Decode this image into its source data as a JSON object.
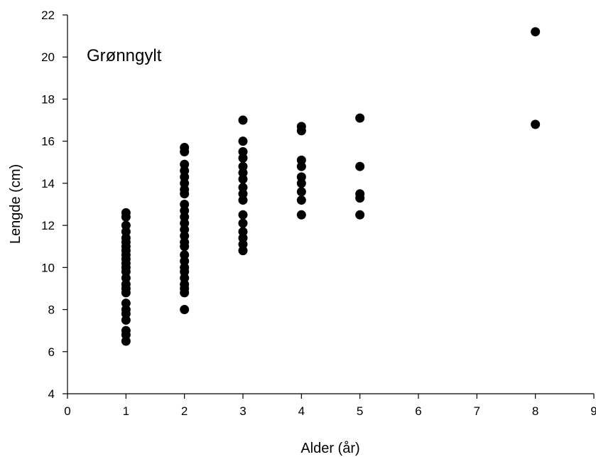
{
  "chart_data": {
    "type": "scatter",
    "annotation": "Grønngylt",
    "xlabel": "Alder (år)",
    "ylabel": "Lengde (cm)",
    "xlim": [
      0,
      9
    ],
    "ylim": [
      4,
      22
    ],
    "xticks": [
      0,
      1,
      2,
      3,
      4,
      5,
      6,
      7,
      8,
      9
    ],
    "yticks": [
      4,
      6,
      8,
      10,
      12,
      14,
      16,
      18,
      20,
      22
    ],
    "grid": false,
    "marker_color": "#000000",
    "points": [
      {
        "x": 1,
        "y": 12.6
      },
      {
        "x": 1,
        "y": 12.4
      },
      {
        "x": 1,
        "y": 12.0
      },
      {
        "x": 1,
        "y": 11.7
      },
      {
        "x": 1,
        "y": 11.4
      },
      {
        "x": 1,
        "y": 11.2
      },
      {
        "x": 1,
        "y": 11.0
      },
      {
        "x": 1,
        "y": 10.8
      },
      {
        "x": 1,
        "y": 10.6
      },
      {
        "x": 1,
        "y": 10.4
      },
      {
        "x": 1,
        "y": 10.2
      },
      {
        "x": 1,
        "y": 10.0
      },
      {
        "x": 1,
        "y": 9.8
      },
      {
        "x": 1,
        "y": 9.5
      },
      {
        "x": 1,
        "y": 9.2
      },
      {
        "x": 1,
        "y": 9.0
      },
      {
        "x": 1,
        "y": 8.8
      },
      {
        "x": 1,
        "y": 8.3
      },
      {
        "x": 1,
        "y": 8.0
      },
      {
        "x": 1,
        "y": 7.8
      },
      {
        "x": 1,
        "y": 7.5
      },
      {
        "x": 1,
        "y": 7.0
      },
      {
        "x": 1,
        "y": 6.8
      },
      {
        "x": 1,
        "y": 6.5
      },
      {
        "x": 2,
        "y": 15.7
      },
      {
        "x": 2,
        "y": 15.5
      },
      {
        "x": 2,
        "y": 14.9
      },
      {
        "x": 2,
        "y": 14.6
      },
      {
        "x": 2,
        "y": 14.3
      },
      {
        "x": 2,
        "y": 14.0
      },
      {
        "x": 2,
        "y": 13.7
      },
      {
        "x": 2,
        "y": 13.5
      },
      {
        "x": 2,
        "y": 13.0
      },
      {
        "x": 2,
        "y": 12.7
      },
      {
        "x": 2,
        "y": 12.4
      },
      {
        "x": 2,
        "y": 12.1
      },
      {
        "x": 2,
        "y": 11.8
      },
      {
        "x": 2,
        "y": 11.5
      },
      {
        "x": 2,
        "y": 11.2
      },
      {
        "x": 2,
        "y": 11.0
      },
      {
        "x": 2,
        "y": 10.6
      },
      {
        "x": 2,
        "y": 10.3
      },
      {
        "x": 2,
        "y": 10.0
      },
      {
        "x": 2,
        "y": 9.8
      },
      {
        "x": 2,
        "y": 9.5
      },
      {
        "x": 2,
        "y": 9.2
      },
      {
        "x": 2,
        "y": 9.0
      },
      {
        "x": 2,
        "y": 8.8
      },
      {
        "x": 2,
        "y": 8.0
      },
      {
        "x": 3,
        "y": 17.0
      },
      {
        "x": 3,
        "y": 16.0
      },
      {
        "x": 3,
        "y": 15.5
      },
      {
        "x": 3,
        "y": 15.2
      },
      {
        "x": 3,
        "y": 14.8
      },
      {
        "x": 3,
        "y": 14.5
      },
      {
        "x": 3,
        "y": 14.2
      },
      {
        "x": 3,
        "y": 13.8
      },
      {
        "x": 3,
        "y": 13.5
      },
      {
        "x": 3,
        "y": 13.2
      },
      {
        "x": 3,
        "y": 12.5
      },
      {
        "x": 3,
        "y": 12.1
      },
      {
        "x": 3,
        "y": 11.7
      },
      {
        "x": 3,
        "y": 11.4
      },
      {
        "x": 3,
        "y": 11.1
      },
      {
        "x": 3,
        "y": 10.8
      },
      {
        "x": 4,
        "y": 16.7
      },
      {
        "x": 4,
        "y": 16.5
      },
      {
        "x": 4,
        "y": 15.1
      },
      {
        "x": 4,
        "y": 14.8
      },
      {
        "x": 4,
        "y": 14.3
      },
      {
        "x": 4,
        "y": 14.0
      },
      {
        "x": 4,
        "y": 13.6
      },
      {
        "x": 4,
        "y": 13.2
      },
      {
        "x": 4,
        "y": 12.5
      },
      {
        "x": 5,
        "y": 17.1
      },
      {
        "x": 5,
        "y": 14.8
      },
      {
        "x": 5,
        "y": 13.5
      },
      {
        "x": 5,
        "y": 13.3
      },
      {
        "x": 5,
        "y": 12.5
      },
      {
        "x": 8,
        "y": 21.2
      },
      {
        "x": 8,
        "y": 16.8
      }
    ]
  }
}
